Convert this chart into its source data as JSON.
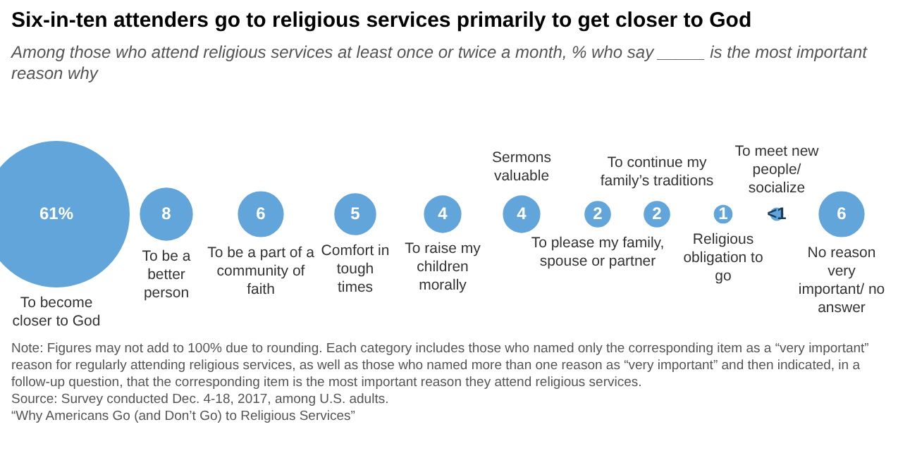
{
  "chart_data": {
    "type": "other",
    "title": "Six-in-ten attenders go to religious services primarily to get closer to God",
    "subtitle": "Among those who attend religious services at least once or twice a month, % who say _____ is the $^{}$most important reason why",
    "categories": [
      "To become closer to God",
      "To be a better person",
      "To be a part of a community of faith",
      "Comfort in tough times",
      "To raise my children morally",
      "Sermons valuable",
      "To please my family, spouse or partner",
      "To continue my family’s traditions",
      "Religious obligation to go",
      "To meet new people/ socialize",
      "No reason very important/ no answer"
    ],
    "values": [
      61,
      8,
      6,
      5,
      4,
      4,
      2,
      2,
      1,
      0.5,
      6
    ],
    "value_labels": [
      "61%",
      "8",
      "6",
      "5",
      "4",
      "4",
      "2",
      "2",
      "1",
      "<1",
      "6"
    ],
    "color": "#62a5db",
    "annotations": [
      "Note: Figures may not add to 100% due to rounding. Each category includes those who named only the corresponding item as a “very important” reason for regularly attending religious services, as well as those who named more than one reason as “very important” and then indicated, in a follow-up question, that the corresponding item is the most important reason they attend religious services.",
      "Source: Survey conducted Dec. 4-18, 2017, among U.S. adults.",
      "“Why Americans Go (and Don’t Go) to Religious Services”"
    ]
  }
}
